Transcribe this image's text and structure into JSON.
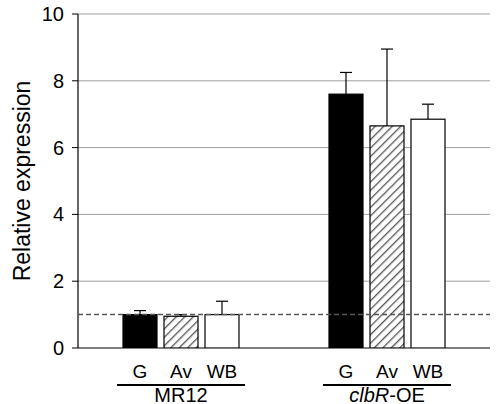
{
  "chart_data": {
    "type": "bar",
    "y_label": "Relative expression",
    "categories": [
      "MR12",
      "clbR-OE"
    ],
    "series": [
      {
        "name": "G",
        "color": "#000000",
        "values": [
          1.0,
          7.6
        ],
        "errors": [
          0.12,
          0.65
        ]
      },
      {
        "name": "Av",
        "color": "#555555",
        "marker": "hatch",
        "values": [
          0.95,
          6.65
        ],
        "errors": [
          0.05,
          2.3
        ]
      },
      {
        "name": "WB",
        "color": "#ffffff",
        "values": [
          1.0,
          6.85
        ],
        "errors": [
          0.4,
          0.45
        ]
      }
    ],
    "reference_line": 1,
    "ylim": [
      0,
      10
    ],
    "yticks": [
      0,
      2,
      4,
      6,
      8,
      10
    ],
    "grid": true
  }
}
